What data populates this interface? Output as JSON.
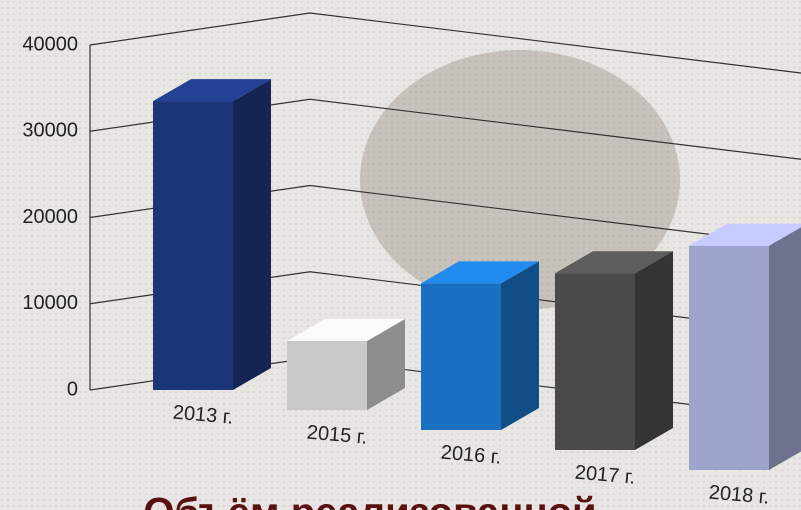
{
  "chart_data": {
    "type": "bar3d",
    "title": "Объём реализованной",
    "categories": [
      "2013 г.",
      "2015 г.",
      "2016 г.",
      "2017 г.",
      "2018 г."
    ],
    "values": [
      33500,
      8000,
      17000,
      20500,
      26000
    ],
    "colors": [
      "#1c3578",
      "#c9c9c9",
      "#1a6fc0",
      "#4a4a4a",
      "#9ea3cc"
    ],
    "ylim": [
      0,
      40000
    ],
    "yticks": [
      0,
      10000,
      20000,
      30000,
      40000
    ],
    "grid": true
  }
}
